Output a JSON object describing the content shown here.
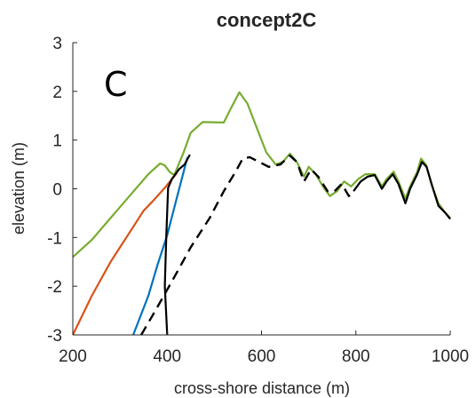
{
  "chart_data": {
    "type": "line",
    "title": "concept2C",
    "panel_label": "C",
    "xlabel": "cross-shore distance (m)",
    "ylabel": "elevation (m)",
    "xlim": [
      200,
      1000
    ],
    "ylim": [
      -3,
      3
    ],
    "xticks": [
      200,
      400,
      600,
      800,
      1000
    ],
    "yticks": [
      -3,
      -2,
      -1,
      0,
      1,
      2,
      3
    ],
    "grid": false,
    "series": [
      {
        "color": "#77ac30",
        "dash": "solid",
        "points": [
          [
            200,
            -1.4
          ],
          [
            240,
            -1.05
          ],
          [
            280,
            -0.6
          ],
          [
            320,
            -0.15
          ],
          [
            360,
            0.3
          ],
          [
            385,
            0.52
          ],
          [
            395,
            0.48
          ],
          [
            405,
            0.35
          ],
          [
            415,
            0.28
          ],
          [
            435,
            0.75
          ],
          [
            450,
            1.15
          ],
          [
            475,
            1.37
          ],
          [
            520,
            1.36
          ],
          [
            535,
            1.65
          ],
          [
            553,
            1.98
          ],
          [
            570,
            1.75
          ],
          [
            590,
            1.25
          ],
          [
            610,
            0.75
          ],
          [
            630,
            0.5
          ],
          [
            645,
            0.55
          ],
          [
            660,
            0.72
          ],
          [
            675,
            0.55
          ],
          [
            690,
            0.25
          ],
          [
            700,
            0.45
          ],
          [
            715,
            0.3
          ],
          [
            730,
            0.05
          ],
          [
            745,
            -0.15
          ],
          [
            760,
            -0.05
          ],
          [
            775,
            0.15
          ],
          [
            790,
            0.05
          ],
          [
            805,
            0.2
          ],
          [
            820,
            0.3
          ],
          [
            840,
            0.3
          ],
          [
            855,
            0.05
          ],
          [
            865,
            0.2
          ],
          [
            880,
            0.35
          ],
          [
            890,
            0.15
          ],
          [
            905,
            -0.2
          ],
          [
            915,
            0.05
          ],
          [
            930,
            0.35
          ],
          [
            938,
            0.62
          ],
          [
            948,
            0.5
          ],
          [
            960,
            0.1
          ],
          [
            975,
            -0.3
          ],
          [
            990,
            -0.5
          ],
          [
            1000,
            -0.6
          ]
        ]
      },
      {
        "color": "#d95319",
        "dash": "solid",
        "points": [
          [
            200,
            -3.05
          ],
          [
            240,
            -2.2
          ],
          [
            280,
            -1.5
          ],
          [
            320,
            -0.9
          ],
          [
            350,
            -0.45
          ],
          [
            370,
            -0.25
          ],
          [
            395,
            0.02
          ],
          [
            410,
            0.2
          ],
          [
            420,
            0.32
          ]
        ]
      },
      {
        "color": "#0072bd",
        "dash": "solid",
        "points": [
          [
            328,
            -3.05
          ],
          [
            360,
            -2.2
          ],
          [
            380,
            -1.55
          ],
          [
            400,
            -0.95
          ],
          [
            420,
            -0.2
          ],
          [
            435,
            0.35
          ],
          [
            443,
            0.65
          ]
        ]
      },
      {
        "color": "#000000",
        "dash": "dashed",
        "points": [
          [
            345,
            -3.05
          ],
          [
            375,
            -2.5
          ],
          [
            410,
            -1.9
          ],
          [
            450,
            -1.2
          ],
          [
            490,
            -0.6
          ],
          [
            520,
            -0.05
          ],
          [
            545,
            0.35
          ],
          [
            560,
            0.62
          ],
          [
            575,
            0.65
          ],
          [
            595,
            0.55
          ],
          [
            615,
            0.45
          ],
          [
            640,
            0.5
          ],
          [
            660,
            0.68
          ],
          [
            675,
            0.55
          ],
          [
            690,
            0.15
          ],
          [
            705,
            0.4
          ],
          [
            720,
            0.25
          ],
          [
            740,
            -0.05
          ],
          [
            755,
            -0.05
          ],
          [
            770,
            0.1
          ],
          [
            785,
            -0.15
          ],
          [
            795,
            -0.05
          ]
        ]
      },
      {
        "color": "#000000",
        "dash": "solid",
        "points": [
          [
            400,
            -3.05
          ],
          [
            395,
            -2.0
          ],
          [
            398,
            -1.0
          ],
          [
            402,
            0.02
          ],
          [
            410,
            0.2
          ],
          [
            425,
            0.4
          ],
          [
            437,
            0.5
          ],
          [
            448,
            0.7
          ]
        ]
      },
      {
        "color": "#000000",
        "dash": "solid",
        "points": [
          [
            795,
            -0.05
          ],
          [
            810,
            0.15
          ],
          [
            825,
            0.25
          ],
          [
            840,
            0.28
          ],
          [
            855,
            0.0
          ],
          [
            865,
            0.15
          ],
          [
            878,
            0.3
          ],
          [
            890,
            0.1
          ],
          [
            905,
            -0.3
          ],
          [
            915,
            0.0
          ],
          [
            930,
            0.3
          ],
          [
            940,
            0.55
          ],
          [
            950,
            0.45
          ],
          [
            962,
            0.05
          ],
          [
            975,
            -0.35
          ],
          [
            990,
            -0.5
          ],
          [
            1000,
            -0.62
          ]
        ]
      }
    ]
  }
}
